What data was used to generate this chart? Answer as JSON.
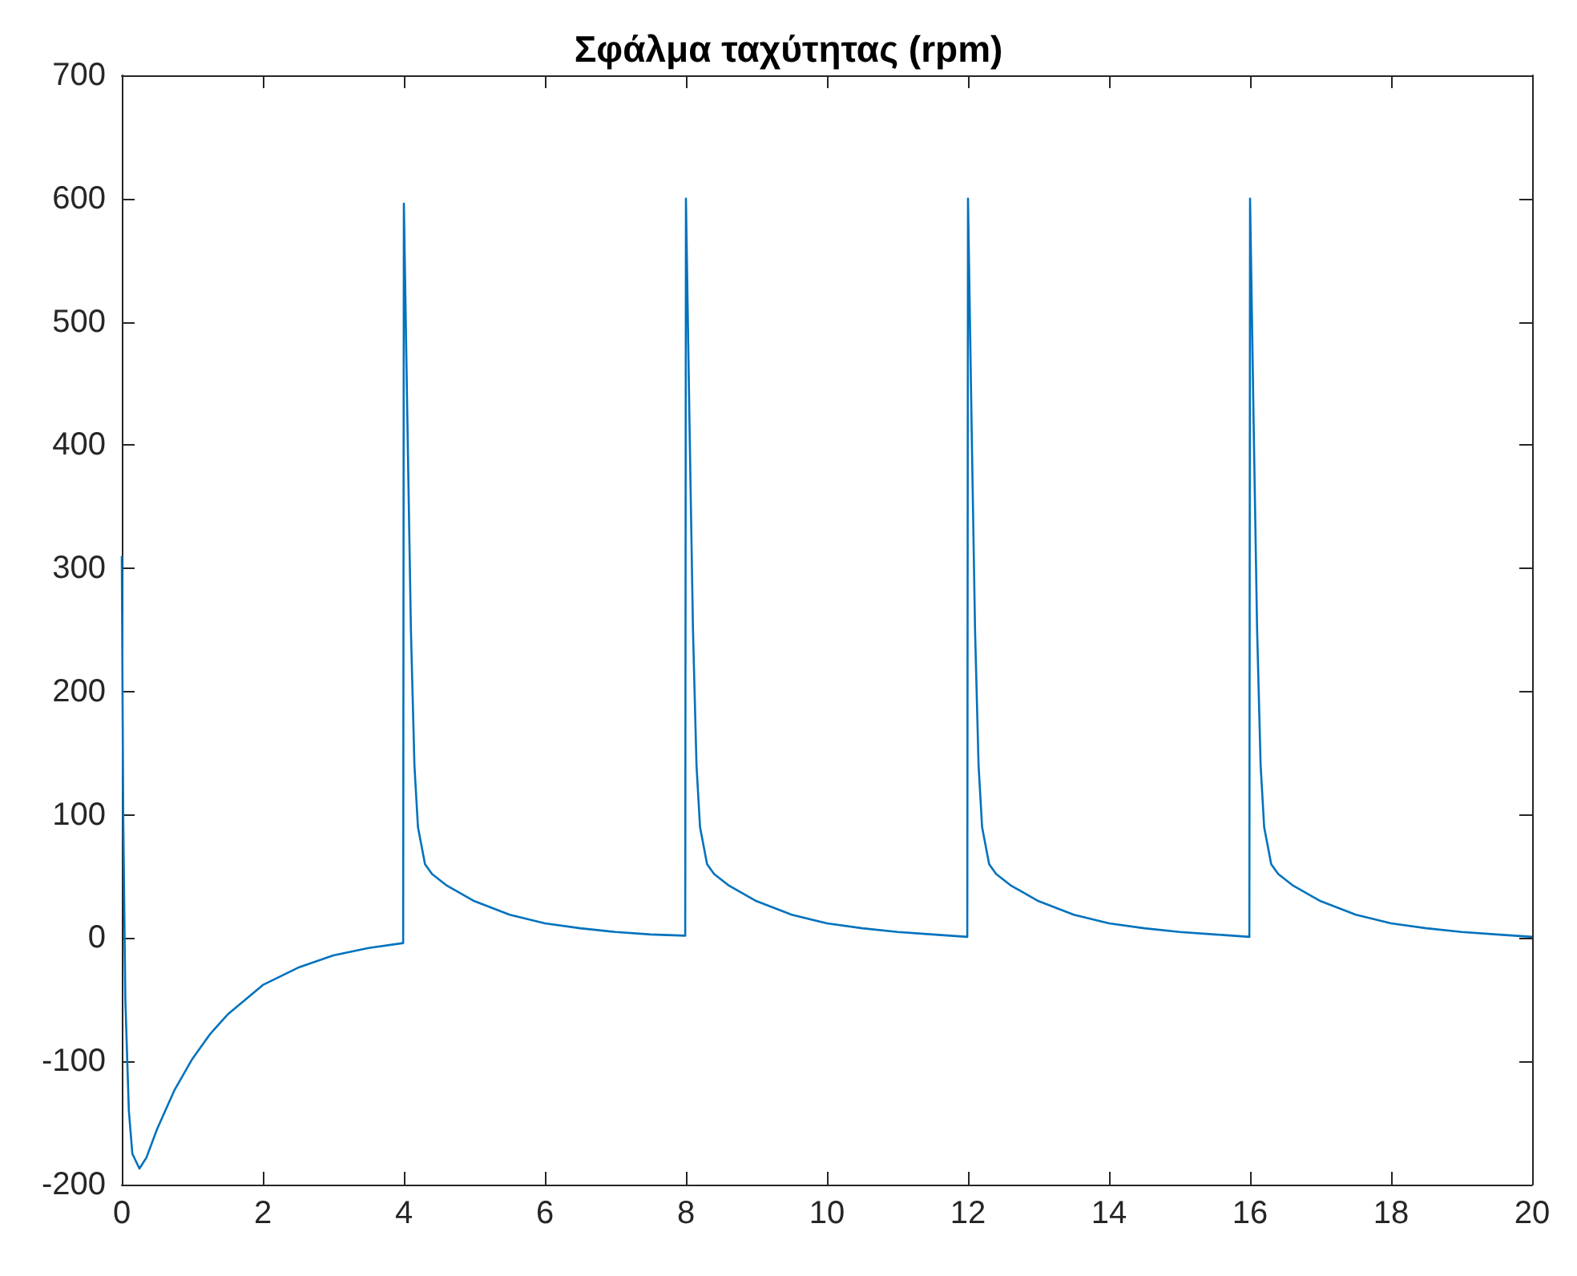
{
  "chart_data": {
    "type": "line",
    "title": "Σφάλμα ταχύτητας (rpm)",
    "x": [
      0,
      0.02,
      0.05,
      0.1,
      0.15,
      0.25,
      0.35,
      0.5,
      0.75,
      1,
      1.25,
      1.5,
      2,
      2.5,
      3,
      3.5,
      3.99,
      4,
      4.05,
      4.1,
      4.15,
      4.2,
      4.3,
      4.4,
      4.6,
      5,
      5.5,
      6,
      6.5,
      7,
      7.5,
      7.99,
      8,
      8.05,
      8.1,
      8.15,
      8.2,
      8.3,
      8.4,
      8.6,
      9,
      9.5,
      10,
      10.5,
      11,
      11.5,
      11.99,
      12,
      12.05,
      12.1,
      12.15,
      12.2,
      12.3,
      12.4,
      12.6,
      13,
      13.5,
      14,
      14.5,
      15,
      15.5,
      15.99,
      16,
      16.05,
      16.1,
      16.15,
      16.2,
      16.3,
      16.4,
      16.6,
      17,
      17.5,
      18,
      18.5,
      19,
      19.5,
      20
    ],
    "series": [
      {
        "color": "#0072bd",
        "values": [
          310,
          100,
          -50,
          -140,
          -175,
          -187,
          -178,
          -155,
          -123,
          -98,
          -78,
          -62,
          -38,
          -24,
          -14,
          -8,
          -4,
          596,
          420,
          250,
          140,
          90,
          60,
          52,
          43,
          30,
          19,
          12,
          8,
          5,
          3,
          2,
          600,
          420,
          250,
          140,
          90,
          60,
          52,
          43,
          30,
          19,
          12,
          8,
          5,
          3,
          1,
          600,
          420,
          250,
          140,
          90,
          60,
          52,
          43,
          30,
          19,
          12,
          8,
          5,
          3,
          1,
          600,
          420,
          250,
          140,
          90,
          60,
          52,
          43,
          30,
          19,
          12,
          8,
          5,
          3,
          1
        ]
      }
    ],
    "xlim": [
      0,
      20
    ],
    "xticks": [
      0,
      2,
      4,
      6,
      8,
      10,
      12,
      14,
      16,
      18,
      20
    ],
    "ylim": [
      -200,
      700
    ],
    "yticks": [
      -200,
      -100,
      0,
      100,
      200,
      300,
      400,
      500,
      600,
      700
    ],
    "marker": "none",
    "line_style": "solid"
  }
}
